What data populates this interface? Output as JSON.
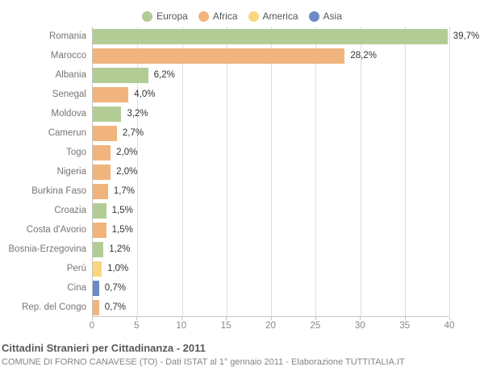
{
  "chart_data": {
    "type": "bar",
    "orientation": "horizontal",
    "title": "Cittadini Stranieri per Cittadinanza - 2011",
    "subtitle": "COMUNE DI FORNO CANAVESE (TO) - Dati ISTAT al 1° gennaio 2011 - Elaborazione TUTTITALIA.IT",
    "xlim": [
      0,
      40
    ],
    "xticks": [
      0,
      5,
      10,
      15,
      20,
      25,
      30,
      35,
      40
    ],
    "grid": true,
    "legend_position": "top-center",
    "legend": [
      "Europa",
      "Africa",
      "America",
      "Asia"
    ],
    "colors": {
      "Europa": "#b3cc96",
      "Africa": "#f0b47c",
      "America": "#f9d67f",
      "Asia": "#6b8ac6"
    },
    "categories": [
      "Romania",
      "Marocco",
      "Albania",
      "Senegal",
      "Moldova",
      "Camerun",
      "Togo",
      "Nigeria",
      "Burkina Faso",
      "Croazia",
      "Costa d'Avorio",
      "Bosnia-Erzegovina",
      "Perù",
      "Cina",
      "Rep. del Congo"
    ],
    "values": [
      39.7,
      28.2,
      6.2,
      4.0,
      3.2,
      2.7,
      2.0,
      2.0,
      1.7,
      1.5,
      1.5,
      1.2,
      1.0,
      0.7,
      0.7
    ],
    "value_labels": [
      "39,7%",
      "28,2%",
      "6,2%",
      "4,0%",
      "3,2%",
      "2,7%",
      "2,0%",
      "2,0%",
      "1,7%",
      "1,5%",
      "1,5%",
      "1,2%",
      "1,0%",
      "0,7%",
      "0,7%"
    ],
    "groups": [
      "Europa",
      "Africa",
      "Europa",
      "Africa",
      "Europa",
      "Africa",
      "Africa",
      "Africa",
      "Africa",
      "Europa",
      "Africa",
      "Europa",
      "America",
      "Asia",
      "Africa"
    ],
    "gridline_color": "#dddddd",
    "axis_border_color": "#c6c6c6"
  }
}
